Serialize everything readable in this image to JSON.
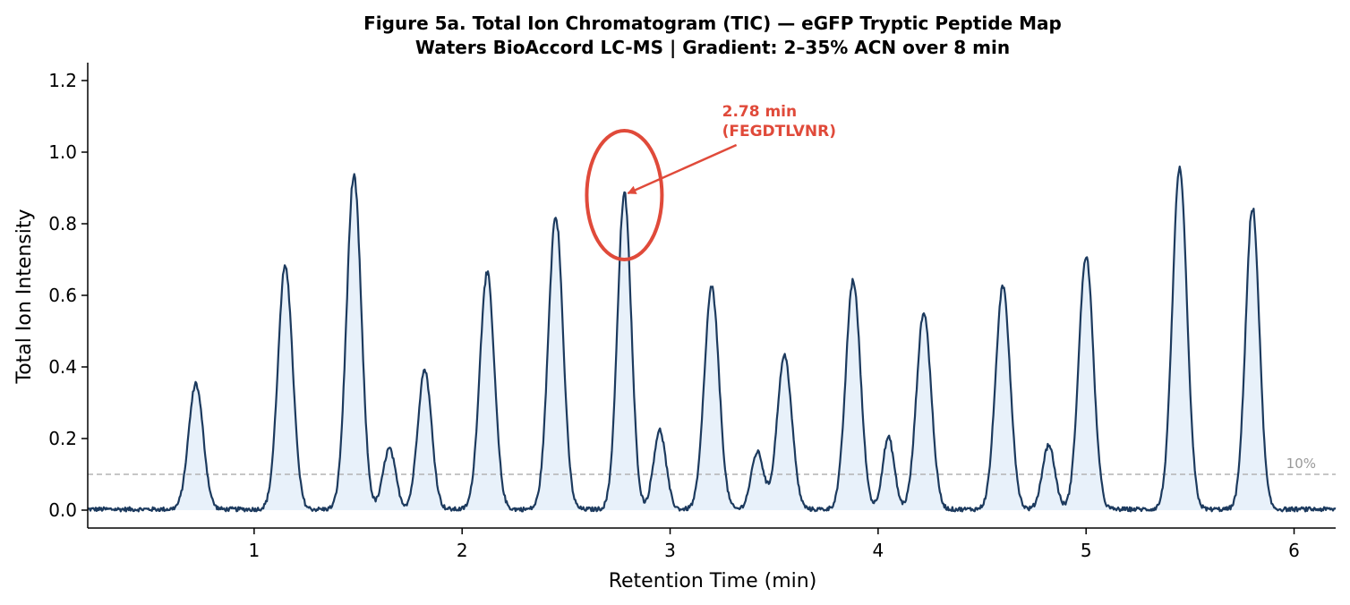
{
  "chart_data": {
    "type": "line",
    "title": "Figure 5a.  Total Ion Chromatogram (TIC) — eGFP Tryptic Peptide Map",
    "subtitle": "Waters BioAccord LC-MS  |  Gradient: 2–35% ACN over 8 min",
    "xlabel": "Retention Time (min)",
    "ylabel": "Total Ion Intensity",
    "xlim": [
      0.2,
      6.2
    ],
    "ylim": [
      -0.05,
      1.25
    ],
    "xticks": [
      {
        "value": 1,
        "label": "1"
      },
      {
        "value": 2,
        "label": "2"
      },
      {
        "value": 3,
        "label": "3"
      },
      {
        "value": 4,
        "label": "4"
      },
      {
        "value": 5,
        "label": "5"
      },
      {
        "value": 6,
        "label": "6"
      }
    ],
    "yticks": [
      {
        "value": 0.0,
        "label": "0.0"
      },
      {
        "value": 0.2,
        "label": "0.2"
      },
      {
        "value": 0.4,
        "label": "0.4"
      },
      {
        "value": 0.6,
        "label": "0.6"
      },
      {
        "value": 0.8,
        "label": "0.8"
      },
      {
        "value": 1.0,
        "label": "1.0"
      },
      {
        "value": 1.2,
        "label": "1.2"
      }
    ],
    "grid": false,
    "peaks": [
      {
        "rt": 0.72,
        "height": 0.35,
        "width": 0.035
      },
      {
        "rt": 1.15,
        "height": 0.68,
        "width": 0.035
      },
      {
        "rt": 1.48,
        "height": 0.93,
        "width": 0.035
      },
      {
        "rt": 1.65,
        "height": 0.17,
        "width": 0.03
      },
      {
        "rt": 1.82,
        "height": 0.39,
        "width": 0.033
      },
      {
        "rt": 2.12,
        "height": 0.66,
        "width": 0.035
      },
      {
        "rt": 2.45,
        "height": 0.82,
        "width": 0.035
      },
      {
        "rt": 2.78,
        "height": 0.88,
        "width": 0.033
      },
      {
        "rt": 2.95,
        "height": 0.22,
        "width": 0.03
      },
      {
        "rt": 3.2,
        "height": 0.62,
        "width": 0.035
      },
      {
        "rt": 3.42,
        "height": 0.16,
        "width": 0.03
      },
      {
        "rt": 3.55,
        "height": 0.43,
        "width": 0.035
      },
      {
        "rt": 3.88,
        "height": 0.64,
        "width": 0.035
      },
      {
        "rt": 4.05,
        "height": 0.2,
        "width": 0.028
      },
      {
        "rt": 4.22,
        "height": 0.55,
        "width": 0.035
      },
      {
        "rt": 4.6,
        "height": 0.62,
        "width": 0.035
      },
      {
        "rt": 4.82,
        "height": 0.18,
        "width": 0.03
      },
      {
        "rt": 5.0,
        "height": 0.71,
        "width": 0.035
      },
      {
        "rt": 5.45,
        "height": 0.95,
        "width": 0.035
      },
      {
        "rt": 5.8,
        "height": 0.84,
        "width": 0.033
      }
    ],
    "baseline_noise": 0.006,
    "threshold": {
      "value": 0.1,
      "label": "10%"
    },
    "annotation": {
      "x": 2.78,
      "y": 0.88,
      "text_line1": "2.78 min",
      "text_line2": "(FEGDTLVNR)",
      "color": "#e04a3a",
      "text_x": 3.25,
      "text_y": 1.05
    },
    "colors": {
      "line": "#1c3a5e",
      "fill": "#dce9f7",
      "threshold": "#b3b3b3",
      "highlight": "#e04a3a"
    }
  }
}
